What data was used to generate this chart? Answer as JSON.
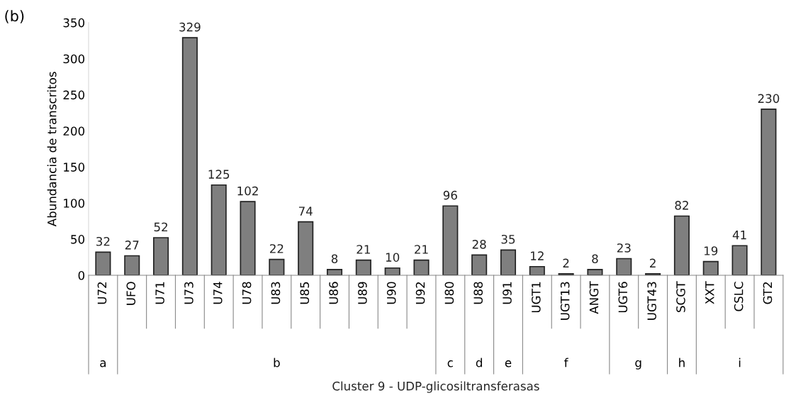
{
  "chart_data": {
    "type": "bar",
    "title": "(b)",
    "ylabel": "Abundancia de transcritos",
    "categories": [
      "U72",
      "UFO",
      "U71",
      "U73",
      "U74",
      "U78",
      "U83",
      "U85",
      "U86",
      "U89",
      "U90",
      "U92",
      "U80",
      "U88",
      "U91",
      "UGT1",
      "UGT13",
      "ANGT",
      "UGT6",
      "UGT43",
      "SCGT",
      "XXT",
      "CSLC",
      "GT2"
    ],
    "values": [
      32,
      27,
      52,
      329,
      125,
      102,
      22,
      74,
      8,
      21,
      10,
      21,
      96,
      28,
      35,
      12,
      2,
      8,
      23,
      2,
      82,
      19,
      41,
      230
    ],
    "color": "#7f7f7f",
    "data_labels": true,
    "ylim": [
      0,
      350
    ],
    "yticks": [
      0,
      50,
      100,
      150,
      200,
      250,
      300,
      350
    ],
    "grid": false,
    "annotations": [
      "a",
      "b",
      "c",
      "d",
      "e",
      "f",
      "g",
      "h",
      "i",
      "Cluster 9 - UDP-glicosiltransferasas"
    ]
  }
}
